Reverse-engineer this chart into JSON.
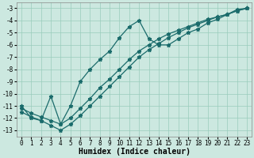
{
  "xlabel": "Humidex (Indice chaleur)",
  "xlim": [
    -0.5,
    23.5
  ],
  "ylim": [
    -13.5,
    -2.5
  ],
  "yticks": [
    -3,
    -4,
    -5,
    -6,
    -7,
    -8,
    -9,
    -10,
    -11,
    -12,
    -13
  ],
  "xticks": [
    0,
    1,
    2,
    3,
    4,
    5,
    6,
    7,
    8,
    9,
    10,
    11,
    12,
    13,
    14,
    15,
    16,
    17,
    18,
    19,
    20,
    21,
    22,
    23
  ],
  "bg_color": "#cce8e0",
  "grid_color": "#99ccbb",
  "line_color": "#1a6b6b",
  "line1_x": [
    0,
    1,
    2,
    3,
    4,
    5,
    6,
    7,
    8,
    9,
    10,
    11,
    12,
    13,
    14,
    15,
    16,
    17,
    18,
    19,
    20,
    21,
    22,
    23
  ],
  "line1_y": [
    -11.0,
    -12.0,
    -12.2,
    -10.2,
    -12.5,
    -11.0,
    -9.0,
    -8.0,
    -7.2,
    -6.5,
    -5.4,
    -4.5,
    -4.0,
    -5.5,
    -6.0,
    -6.0,
    -5.5,
    -5.0,
    -4.7,
    -4.2,
    -3.9,
    -3.5,
    -3.1,
    -3.0
  ],
  "line2_x": [
    0,
    1,
    2,
    3,
    4,
    5,
    6,
    7,
    8,
    9,
    10,
    11,
    12,
    13,
    14,
    15,
    16,
    17,
    18,
    19,
    20,
    21,
    22,
    23
  ],
  "line2_y": [
    -11.2,
    -11.6,
    -11.9,
    -12.2,
    -12.5,
    -12.0,
    -11.2,
    -10.4,
    -9.5,
    -8.8,
    -8.0,
    -7.2,
    -6.5,
    -6.0,
    -5.5,
    -5.1,
    -4.8,
    -4.5,
    -4.2,
    -3.9,
    -3.7,
    -3.5,
    -3.2,
    -3.0
  ],
  "line3_x": [
    0,
    1,
    2,
    3,
    4,
    5,
    6,
    7,
    8,
    9,
    10,
    11,
    12,
    13,
    14,
    15,
    16,
    17,
    18,
    19,
    20,
    21,
    22,
    23
  ],
  "line3_y": [
    -11.5,
    -11.9,
    -12.2,
    -12.6,
    -13.0,
    -12.5,
    -11.8,
    -11.0,
    -10.2,
    -9.4,
    -8.6,
    -7.8,
    -7.0,
    -6.4,
    -5.9,
    -5.4,
    -5.0,
    -4.6,
    -4.3,
    -4.0,
    -3.7,
    -3.5,
    -3.2,
    -3.0
  ],
  "marker": "*",
  "marker_size": 3.5,
  "line_width": 0.9,
  "tick_fontsize": 5.5,
  "xlabel_fontsize": 7,
  "font_family": "monospace"
}
